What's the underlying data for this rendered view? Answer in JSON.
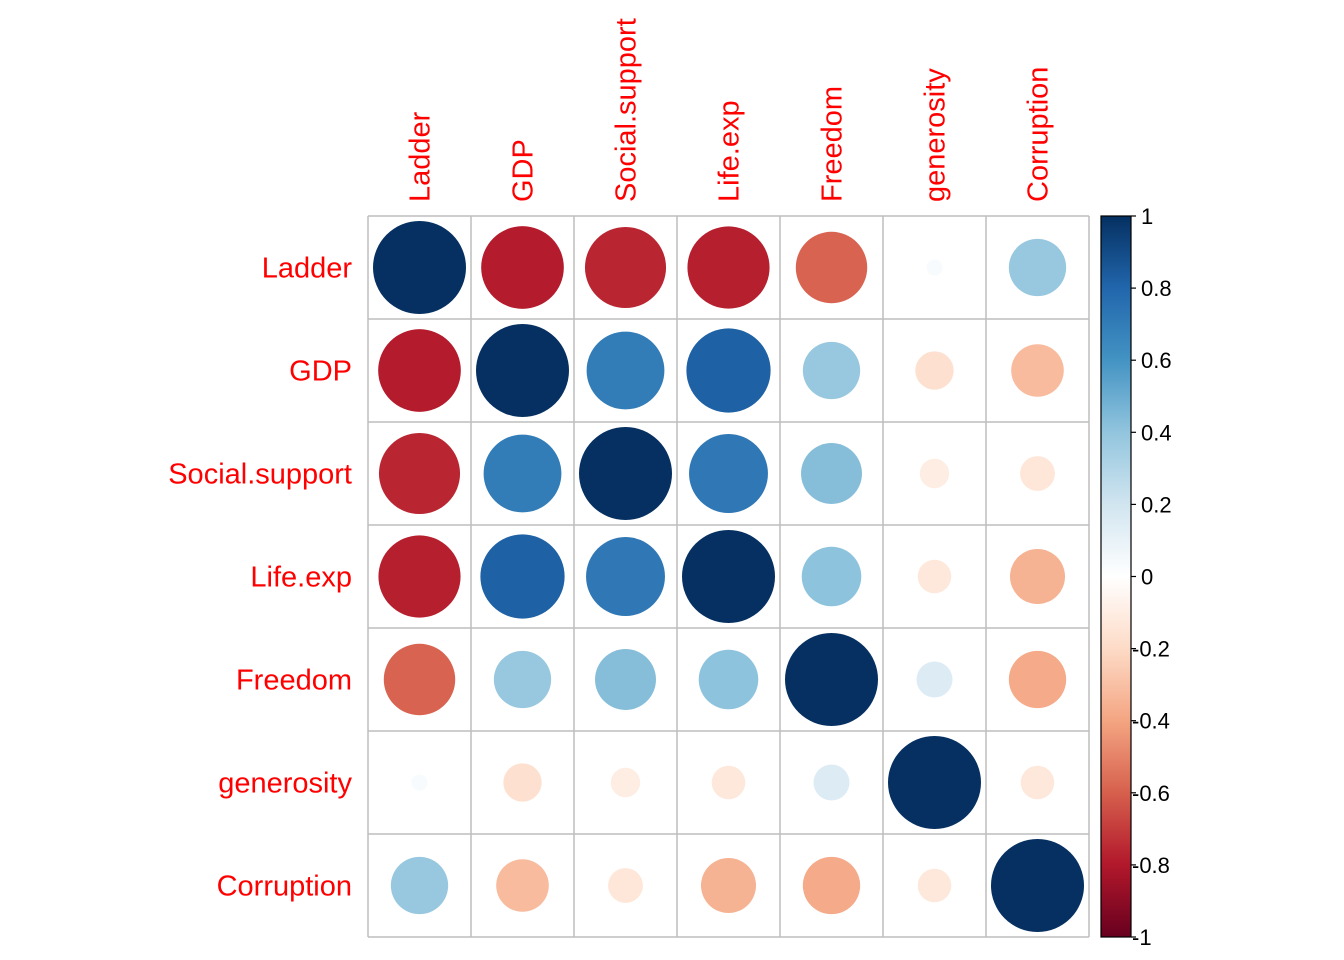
{
  "chart_data": {
    "type": "heatmap",
    "style": "circle correlation matrix",
    "variables": [
      "Ladder",
      "GDP",
      "Social.support",
      "Life.exp",
      "Freedom",
      "generosity",
      "Corruption"
    ],
    "matrix": [
      [
        1.0,
        -0.79,
        -0.76,
        -0.78,
        -0.59,
        0.03,
        0.38
      ],
      [
        -0.79,
        1.0,
        0.7,
        0.82,
        0.38,
        -0.17,
        -0.32
      ],
      [
        -0.76,
        0.7,
        1.0,
        0.72,
        0.43,
        -0.1,
        -0.14
      ],
      [
        -0.78,
        0.82,
        0.72,
        1.0,
        0.41,
        -0.13,
        -0.35
      ],
      [
        -0.59,
        0.38,
        0.43,
        0.41,
        1.0,
        0.15,
        -0.38
      ],
      [
        0.03,
        -0.17,
        -0.1,
        -0.13,
        0.15,
        1.0,
        -0.13
      ],
      [
        0.38,
        -0.32,
        -0.14,
        -0.35,
        -0.38,
        -0.13,
        1.0
      ]
    ],
    "colorbar": {
      "range": [
        -1,
        1
      ],
      "ticks": [
        "1",
        "0.8",
        "0.6",
        "0.4",
        "0.2",
        "0",
        "-0.2",
        "-0.4",
        "-0.6",
        "-0.8",
        "-1"
      ],
      "tick_values": [
        1,
        0.8,
        0.6,
        0.4,
        0.2,
        0,
        -0.2,
        -0.4,
        -0.6,
        -0.8,
        -1
      ],
      "palette": [
        "#67001F",
        "#B2182B",
        "#D6604D",
        "#F4A582",
        "#FDDBC7",
        "#FFFFFF",
        "#D1E5F0",
        "#92C5DE",
        "#4393C3",
        "#2166AC",
        "#053061"
      ]
    },
    "label_color": "#FF0000",
    "grid_color": "#BEBEBE"
  }
}
